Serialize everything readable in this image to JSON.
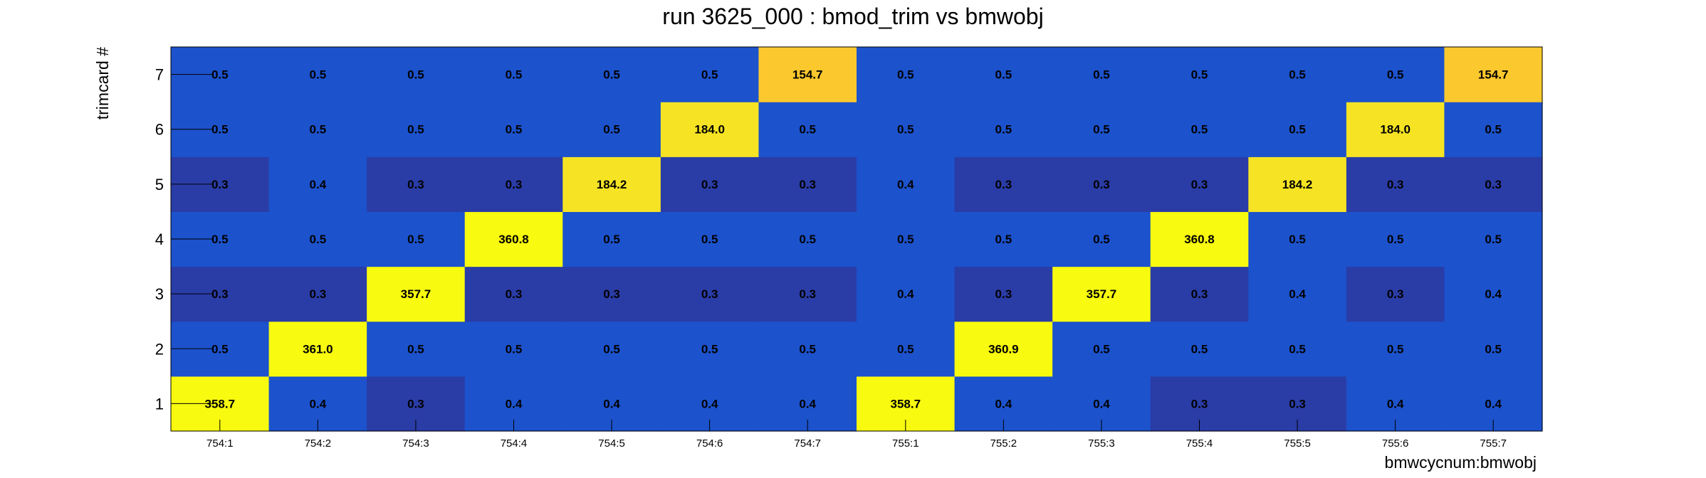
{
  "chart_data": {
    "type": "heatmap",
    "title": "run 3625_000 : bmod_trim vs bmwobj",
    "xlabel": "bmwcycnum:bmwobj",
    "ylabel": "trimcard #",
    "x_categories": [
      "754:1",
      "754:2",
      "754:3",
      "754:4",
      "754:5",
      "754:6",
      "754:7",
      "755:1",
      "755:2",
      "755:3",
      "755:4",
      "755:5",
      "755:6",
      "755:7"
    ],
    "y_categories": [
      "1",
      "2",
      "3",
      "4",
      "5",
      "6",
      "7"
    ],
    "values": [
      [
        358.7,
        0.4,
        0.3,
        0.4,
        0.4,
        0.4,
        0.4,
        358.7,
        0.4,
        0.4,
        0.3,
        0.3,
        0.4,
        0.4
      ],
      [
        0.5,
        361.0,
        0.5,
        0.5,
        0.5,
        0.5,
        0.5,
        0.5,
        360.9,
        0.5,
        0.5,
        0.5,
        0.5,
        0.5
      ],
      [
        0.3,
        0.3,
        357.7,
        0.3,
        0.3,
        0.3,
        0.3,
        0.4,
        0.3,
        357.7,
        0.3,
        0.4,
        0.3,
        0.4
      ],
      [
        0.5,
        0.5,
        0.5,
        360.8,
        0.5,
        0.5,
        0.5,
        0.5,
        0.5,
        0.5,
        360.8,
        0.5,
        0.5,
        0.5
      ],
      [
        0.3,
        0.4,
        0.3,
        0.3,
        184.2,
        0.3,
        0.3,
        0.4,
        0.3,
        0.3,
        0.3,
        184.2,
        0.3,
        0.3
      ],
      [
        0.5,
        0.5,
        0.5,
        0.5,
        0.5,
        184.0,
        0.5,
        0.5,
        0.5,
        0.5,
        0.5,
        0.5,
        184.0,
        0.5
      ],
      [
        0.5,
        0.5,
        0.5,
        0.5,
        0.5,
        0.5,
        154.7,
        0.5,
        0.5,
        0.5,
        0.5,
        0.5,
        0.5,
        154.7
      ]
    ],
    "colors": {
      "low": "#2a3ca6",
      "lowmid": "#1c52cc",
      "mid": "#fbc82e",
      "high": "#f6e424",
      "max": "#f8fa0f"
    }
  }
}
